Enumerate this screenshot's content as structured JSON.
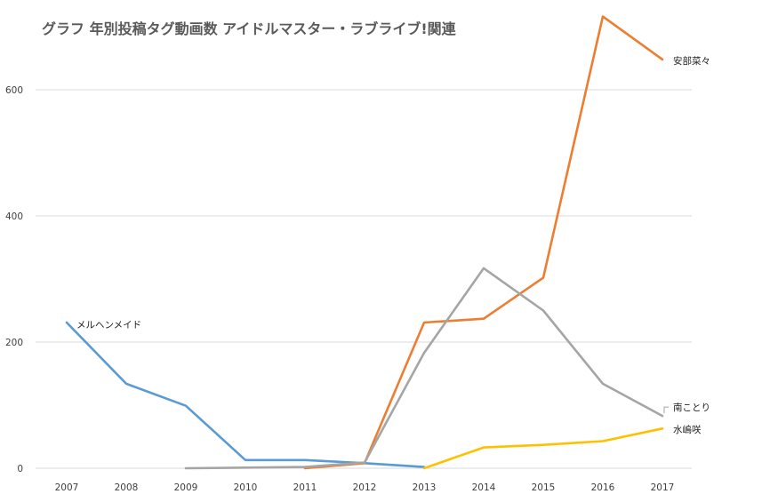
{
  "chart_data": {
    "type": "line",
    "title": "グラフ 年別投稿タグ動画数 アイドルマスター・ラブライブ!関連",
    "xlabel": "",
    "ylabel": "",
    "categories": [
      "2007",
      "2008",
      "2009",
      "2010",
      "2011",
      "2012",
      "2013",
      "2014",
      "2015",
      "2016",
      "2017"
    ],
    "ylim": [
      0,
      700
    ],
    "yticks": [
      "0",
      "200",
      "400",
      "600"
    ],
    "grid": true,
    "legend": "labels at series ends",
    "series": [
      {
        "name": "メルヘンメイド",
        "color": "#5b9bd5",
        "values": [
          231,
          134,
          99,
          13,
          13,
          8,
          2,
          null,
          null,
          null,
          null
        ]
      },
      {
        "name": "安部菜々",
        "color": "#ed7d31",
        "values": [
          null,
          null,
          null,
          null,
          0,
          8,
          231,
          237,
          302,
          716,
          648
        ]
      },
      {
        "name": "南ことり",
        "color": "#a5a5a5",
        "values": [
          null,
          null,
          0,
          1,
          2,
          9,
          183,
          317,
          250,
          134,
          83
        ]
      },
      {
        "name": "水嶋咲",
        "color": "#ffc000",
        "values": [
          null,
          null,
          null,
          null,
          null,
          null,
          0,
          33,
          37,
          43,
          63
        ]
      }
    ]
  }
}
